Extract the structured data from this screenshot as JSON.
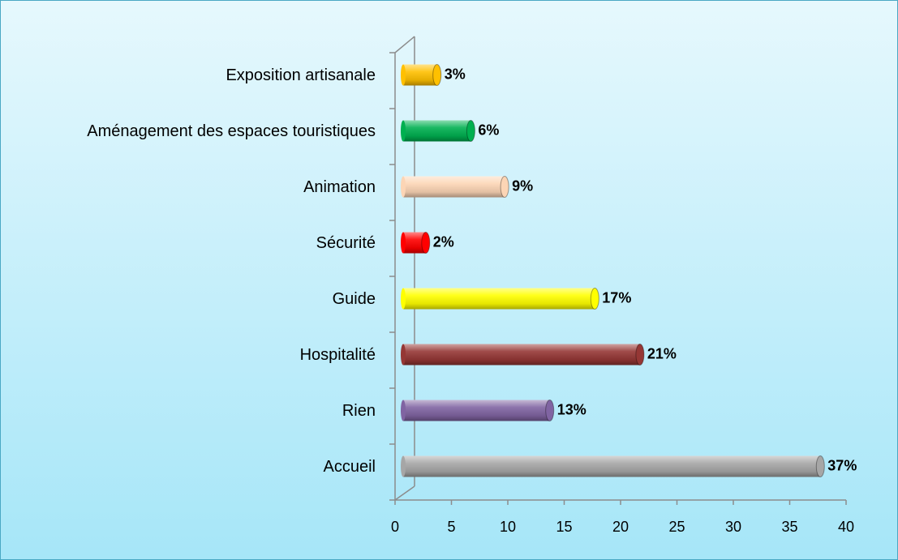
{
  "chart_data": {
    "type": "bar",
    "orientation": "horizontal",
    "categories": [
      "Accueil",
      "Rien",
      "Hospitalité",
      "Guide",
      "Sécurité",
      "Animation",
      "Aménagement des espaces touristiques",
      "Exposition artisanale"
    ],
    "values": [
      37,
      13,
      21,
      17,
      2,
      9,
      6,
      3
    ],
    "value_labels": [
      "37%",
      "13%",
      "21%",
      "17%",
      "2%",
      "9%",
      "6%",
      "3%"
    ],
    "colors": [
      "#a6a6a6",
      "#8064a2",
      "#953735",
      "#ffff00",
      "#ff0000",
      "#fcd5b5",
      "#00b050",
      "#ffc000"
    ],
    "xlim": [
      0,
      40
    ],
    "xticks": [
      0,
      5,
      10,
      15,
      20,
      25,
      30,
      35,
      40
    ]
  }
}
